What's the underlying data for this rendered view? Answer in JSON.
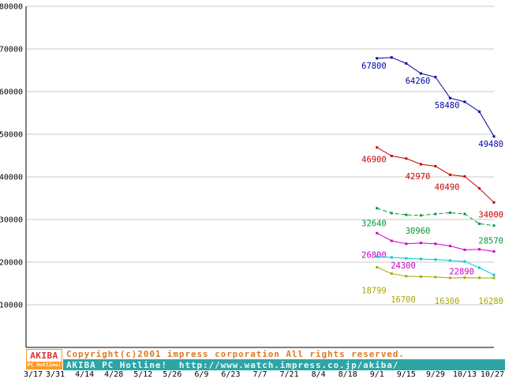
{
  "chart_data": {
    "type": "line",
    "title": "",
    "x_tick_labels": [
      "3/17",
      "3/31",
      "4/14",
      "4/28",
      "5/12",
      "5/26",
      "6/9",
      "6/23",
      "7/7",
      "7/21",
      "8/4",
      "8/18",
      "9/1",
      "9/15",
      "9/29",
      "10/13",
      "10/27"
    ],
    "ylim": [
      0,
      80000
    ],
    "y_tick_labels": [
      "10000",
      "20000",
      "30000",
      "40000",
      "50000",
      "60000",
      "70000",
      "80000"
    ],
    "grid": "horizontal",
    "legend": "none",
    "series": [
      {
        "name": "series-1-blue",
        "color": "#0000aa",
        "dash": "",
        "label_dy": 13,
        "points": [
          [
            12,
            67800,
            "67800"
          ],
          [
            12.5,
            68000
          ],
          [
            13,
            66600
          ],
          [
            13.5,
            64260,
            "64260"
          ],
          [
            14,
            63400
          ],
          [
            14.5,
            58480,
            "58480"
          ],
          [
            15,
            57600
          ],
          [
            15.5,
            55300
          ],
          [
            16,
            49480,
            "49480"
          ]
        ]
      },
      {
        "name": "series-2-red",
        "color": "#cc0000",
        "dash": "",
        "label_dy": 19,
        "points": [
          [
            12,
            46900,
            "46900"
          ],
          [
            12.5,
            44900
          ],
          [
            13,
            44300
          ],
          [
            13.5,
            42970,
            "42970"
          ],
          [
            14,
            42500
          ],
          [
            14.5,
            40490,
            "40490"
          ],
          [
            15,
            40100
          ],
          [
            15.5,
            37300
          ],
          [
            16,
            34000,
            "34000"
          ]
        ]
      },
      {
        "name": "series-3-green",
        "color": "#009933",
        "dash": "5,3",
        "label_dy": 23,
        "points": [
          [
            12,
            32640,
            "32640"
          ],
          [
            12.5,
            31500
          ],
          [
            13,
            31100
          ],
          [
            13.5,
            30960,
            "30960"
          ],
          [
            14,
            31300
          ],
          [
            14.5,
            31600
          ],
          [
            15,
            31300
          ],
          [
            15.5,
            29000
          ],
          [
            16,
            28570,
            "28570"
          ]
        ]
      },
      {
        "name": "series-4-magenta",
        "color": "#cc00cc",
        "dash": "",
        "label_dy": 31,
        "points": [
          [
            12,
            26800,
            "26800"
          ],
          [
            12.5,
            25000
          ],
          [
            13,
            24300,
            "24300"
          ],
          [
            13.5,
            24500
          ],
          [
            14,
            24300
          ],
          [
            14.5,
            23800
          ],
          [
            15,
            22890,
            "22890"
          ],
          [
            15.5,
            23000
          ],
          [
            16,
            22500
          ]
        ]
      },
      {
        "name": "series-5-cyan",
        "color": "#00c8c8",
        "dash": "",
        "label_dy": 13,
        "points": [
          [
            12,
            21300
          ],
          [
            12.5,
            21100
          ],
          [
            13,
            20900
          ],
          [
            13.5,
            20750
          ],
          [
            14,
            20600
          ],
          [
            14.5,
            20400
          ],
          [
            15,
            20150
          ],
          [
            15.5,
            18700
          ],
          [
            16,
            17000
          ]
        ]
      },
      {
        "name": "series-6-olive",
        "color": "#a8a800",
        "dash": "",
        "label_dy": 33,
        "points": [
          [
            12,
            18799,
            "18799"
          ],
          [
            12.5,
            17300
          ],
          [
            13,
            16700,
            "16700"
          ],
          [
            13.5,
            16600
          ],
          [
            14,
            16500
          ],
          [
            14.5,
            16300,
            "16300"
          ],
          [
            15,
            16350
          ],
          [
            15.5,
            16320
          ],
          [
            16,
            16280,
            "16280"
          ]
        ]
      }
    ]
  },
  "footer": {
    "logo_top": "AKIBA",
    "logo_bottom": "PC Hotline!",
    "copyright": "Copyright(c)2001 impress corporation All rights reserved.",
    "site": "AKIBA PC Hotline!  http://www.watch.impress.co.jp/akiba/"
  },
  "colors": {
    "axis": "#000000",
    "grid": "#c8c8c8",
    "copyright_text": "#e07820",
    "site_bar_bg": "#2fa4a4",
    "site_bar_text": "#eafafa",
    "logo_orange": "#ff9a2a",
    "logo_red": "#e03030"
  }
}
